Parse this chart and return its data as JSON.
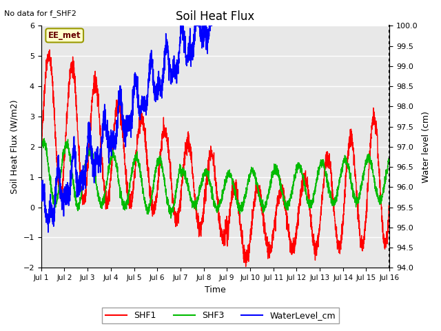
{
  "title": "Soil Heat Flux",
  "subtitle": "No data for f_SHF2",
  "ylabel_left": "Soil Heat Flux (W/m2)",
  "ylabel_right": "Water level (cm)",
  "xlabel": "Time",
  "ylim_left": [
    -2.0,
    6.0
  ],
  "ylim_right": [
    94.0,
    100.0
  ],
  "yticks_left": [
    -2.0,
    -1.0,
    0.0,
    1.0,
    2.0,
    3.0,
    4.0,
    5.0,
    6.0
  ],
  "yticks_right": [
    94.0,
    94.5,
    95.0,
    95.5,
    96.0,
    96.5,
    97.0,
    97.5,
    98.0,
    98.5,
    99.0,
    99.5,
    100.0
  ],
  "xtick_labels": [
    "Jul 1",
    "Jul 2",
    "Jul 3",
    "Jul 4",
    "Jul 5",
    "Jul 6",
    "Jul 7",
    "Jul 8",
    "Jul 9",
    "Jul 10",
    "Jul 11",
    "Jul 12",
    "Jul 13",
    "Jul 14",
    "Jul 15",
    "Jul 16"
  ],
  "legend_entries": [
    "SHF1",
    "SHF3",
    "WaterLevel_cm"
  ],
  "legend_colors": [
    "#ff0000",
    "#00bb00",
    "#0000ff"
  ],
  "bg_color": "#e8e8e8",
  "box_label": "EE_met",
  "box_facecolor": "#ffffcc",
  "box_edgecolor": "#999900",
  "shf1_color": "#ff0000",
  "shf3_color": "#00bb00",
  "water_color": "#0000ff"
}
